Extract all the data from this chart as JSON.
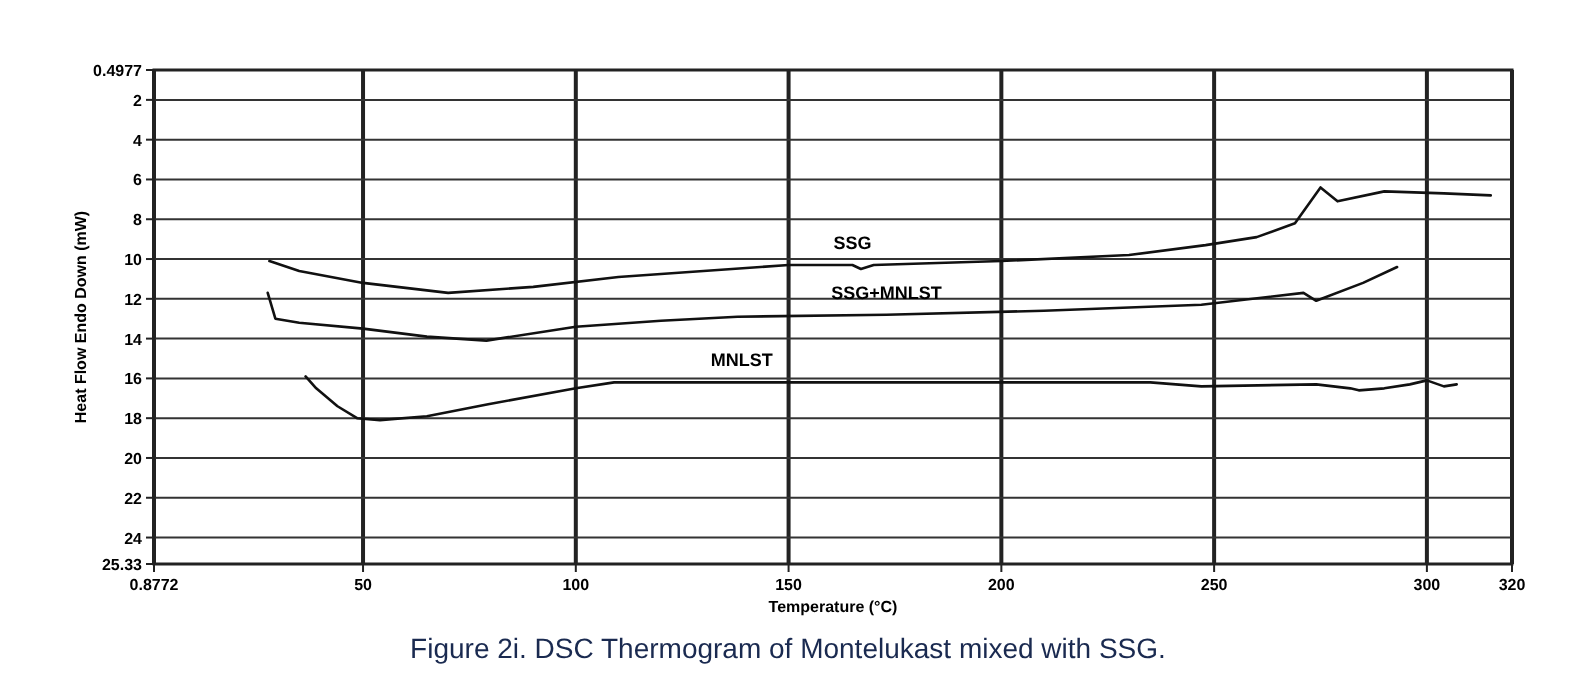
{
  "chart_data": {
    "type": "line",
    "xlabel": "Temperature (°C)",
    "ylabel": "Heat Flow Endo Down (mW)",
    "annotations": [
      "Figure 2i. DSC Thermogram of Montelukast mixed with SSG."
    ],
    "xlim": [
      0.8772,
      320
    ],
    "xticks": [
      0.8772,
      50,
      100,
      150,
      200,
      250,
      300,
      320
    ],
    "ylim": [
      25.33,
      0.4977
    ],
    "yticks": [
      0.4977,
      2,
      4,
      6,
      8,
      10,
      12,
      14,
      16,
      18,
      20,
      22,
      24,
      25.33
    ],
    "grid": true,
    "marker": "none",
    "line_style": "solid",
    "series": [
      {
        "name": "SSG",
        "color": "#111111",
        "x": [
          28,
          35,
          50,
          70,
          90,
          110,
          130,
          150,
          165,
          167,
          170,
          200,
          230,
          248,
          260,
          269,
          275,
          279,
          290,
          304,
          315
        ],
        "values": [
          10.1,
          10.6,
          11.2,
          11.7,
          11.4,
          10.9,
          10.6,
          10.3,
          10.3,
          10.5,
          10.3,
          10.1,
          9.8,
          9.3,
          8.9,
          8.2,
          6.4,
          7.1,
          6.6,
          6.7,
          6.8
        ]
      },
      {
        "name": "SSG+MNLST",
        "color": "#111111",
        "x": [
          27.6,
          29.4,
          35,
          50,
          65,
          79,
          100,
          120,
          138,
          173,
          210,
          247,
          271,
          274,
          285,
          293
        ],
        "values": [
          11.7,
          13.0,
          13.2,
          13.5,
          13.9,
          14.1,
          13.4,
          13.1,
          12.9,
          12.8,
          12.6,
          12.3,
          11.7,
          12.1,
          11.2,
          10.4
        ]
      },
      {
        "name": "MNLST",
        "color": "#111111",
        "x": [
          36.5,
          39,
          44,
          48.6,
          54,
          65,
          79.4,
          100,
          109,
          139,
          200,
          235,
          247,
          274,
          282,
          284,
          290,
          296,
          300,
          304,
          307
        ],
        "values": [
          15.9,
          16.5,
          17.4,
          18.0,
          18.1,
          17.9,
          17.3,
          16.5,
          16.2,
          16.2,
          16.2,
          16.2,
          16.4,
          16.3,
          16.5,
          16.6,
          16.5,
          16.3,
          16.1,
          16.4,
          16.3
        ]
      }
    ]
  }
}
